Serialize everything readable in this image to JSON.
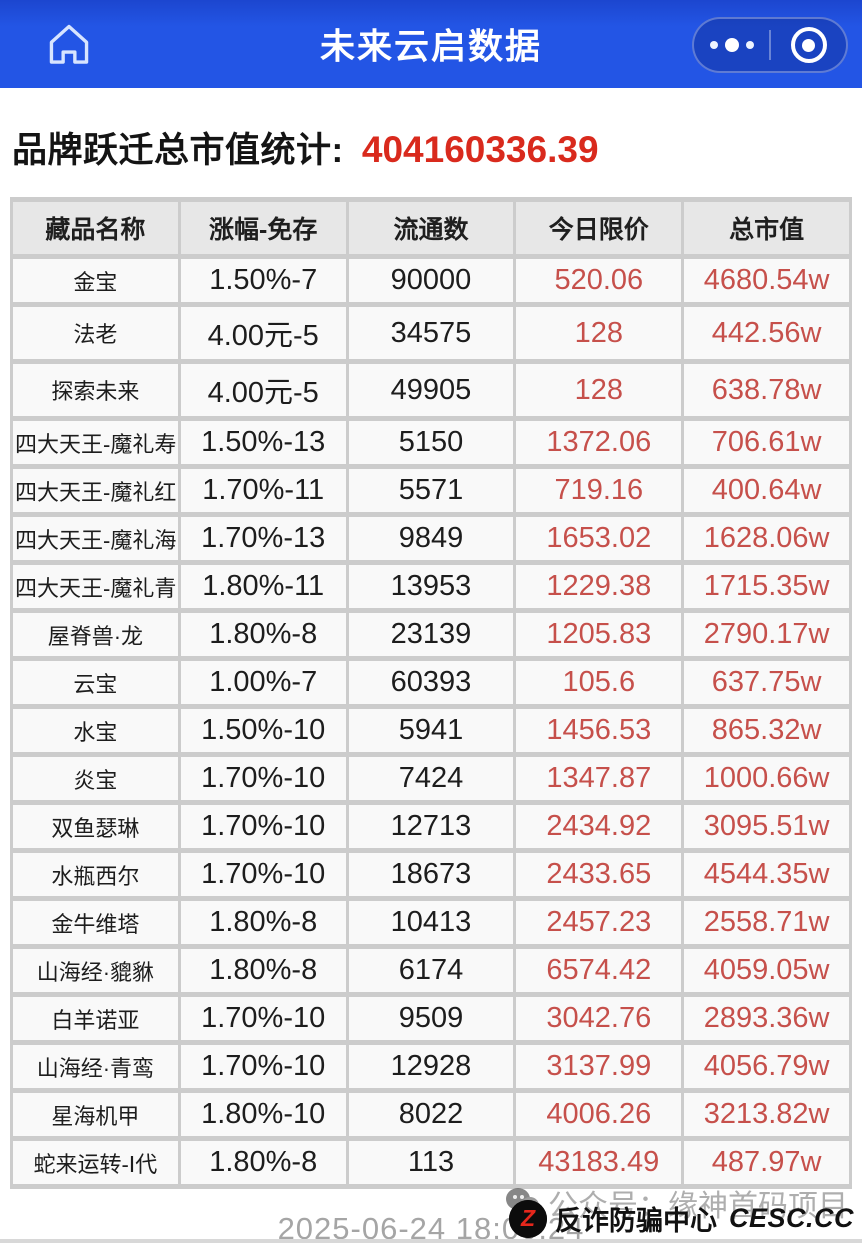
{
  "appbar": {
    "title": "未来云启数据",
    "icons": {
      "home": "home-outline",
      "more": "three-dots",
      "target": "circled-dot"
    }
  },
  "summary": {
    "label": "品牌跃迁总市值统计:",
    "value": "404160336.39"
  },
  "table": {
    "columns": [
      "藏品名称",
      "涨幅-免存",
      "流通数",
      "今日限价",
      "总市值"
    ],
    "rows": [
      [
        "金宝",
        "1.50%-7",
        "90000",
        "520.06",
        "4680.54w"
      ],
      [
        "法老",
        "4.00元-5",
        "34575",
        "128",
        "442.56w"
      ],
      [
        "探索未来",
        "4.00元-5",
        "49905",
        "128",
        "638.78w"
      ],
      [
        "四大天王-魔礼寿",
        "1.50%-13",
        "5150",
        "1372.06",
        "706.61w"
      ],
      [
        "四大天王-魔礼红",
        "1.70%-11",
        "5571",
        "719.16",
        "400.64w"
      ],
      [
        "四大天王-魔礼海",
        "1.70%-13",
        "9849",
        "1653.02",
        "1628.06w"
      ],
      [
        "四大天王-魔礼青",
        "1.80%-11",
        "13953",
        "1229.38",
        "1715.35w"
      ],
      [
        "屋脊兽·龙",
        "1.80%-8",
        "23139",
        "1205.83",
        "2790.17w"
      ],
      [
        "云宝",
        "1.00%-7",
        "60393",
        "105.6",
        "637.75w"
      ],
      [
        "水宝",
        "1.50%-10",
        "5941",
        "1456.53",
        "865.32w"
      ],
      [
        "炎宝",
        "1.70%-10",
        "7424",
        "1347.87",
        "1000.66w"
      ],
      [
        "双鱼瑟琳",
        "1.70%-10",
        "12713",
        "2434.92",
        "3095.51w"
      ],
      [
        "水瓶西尔",
        "1.70%-10",
        "18673",
        "2433.65",
        "4544.35w"
      ],
      [
        "金牛维塔",
        "1.80%-8",
        "10413",
        "2457.23",
        "2558.71w"
      ],
      [
        "山海经·貔貅",
        "1.80%-8",
        "6174",
        "6574.42",
        "4059.05w"
      ],
      [
        "白羊诺亚",
        "1.70%-10",
        "9509",
        "3042.76",
        "2893.36w"
      ],
      [
        "山海经·青鸾",
        "1.70%-10",
        "12928",
        "3137.99",
        "4056.79w"
      ],
      [
        "星海机甲",
        "1.80%-10",
        "8022",
        "4006.26",
        "3213.82w"
      ],
      [
        "蛇来运转-Ⅰ代",
        "1.80%-8",
        "113",
        "43183.49",
        "487.97w"
      ]
    ]
  },
  "footer": {
    "timestamp": "2025-06-24 18:00:24",
    "channel_watermark": "公众号：缘神首码项目",
    "antifraud": {
      "logo_letter": "Z",
      "name": "反诈防骗中心",
      "site": "CESC.CC"
    }
  },
  "colors": {
    "appbar_blue": "#2355e5",
    "summary_red": "#d92a1d",
    "cell_red": "#c6504b",
    "header_cell_bg": "#e7e7e7",
    "table_grid": "#cccccc",
    "timestamp_gray": "#a5a5a5"
  }
}
